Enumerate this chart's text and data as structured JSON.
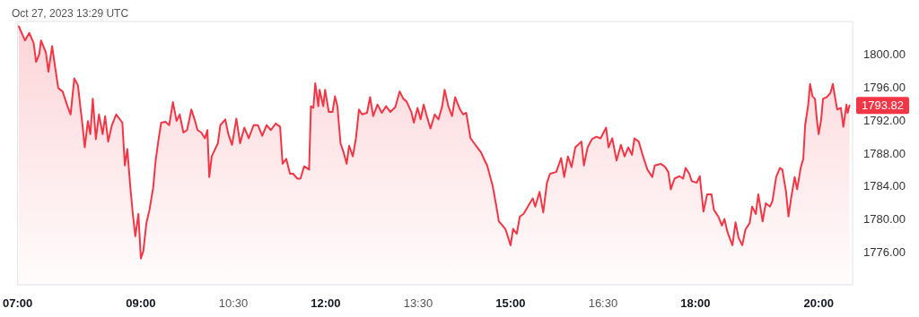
{
  "chart_data": {
    "type": "area",
    "title": "Oct 27, 2023 13:29 UTC",
    "x": [
      7.02,
      7.06,
      7.12,
      7.19,
      7.26,
      7.3,
      7.35,
      7.38,
      7.46,
      7.5,
      7.56,
      7.62,
      7.66,
      7.73,
      7.81,
      7.86,
      7.92,
      7.98,
      8.02,
      8.05,
      8.09,
      8.14,
      8.18,
      8.22,
      8.27,
      8.32,
      8.38,
      8.42,
      8.47,
      8.53,
      8.6,
      8.7,
      8.74,
      8.78,
      8.83,
      8.87,
      8.91,
      8.96,
      9.0,
      9.04,
      9.09,
      9.14,
      9.2,
      9.24,
      9.29,
      9.33,
      9.4,
      9.46,
      9.52,
      9.58,
      9.63,
      9.69,
      9.75,
      9.82,
      9.88,
      9.92,
      9.98,
      10.04,
      10.08,
      10.11,
      10.15,
      10.25,
      10.29,
      10.37,
      10.42,
      10.48,
      10.55,
      10.61,
      10.68,
      10.75,
      10.83,
      10.9,
      10.97,
      11.04,
      11.11,
      11.19,
      11.26,
      11.3,
      11.36,
      11.42,
      11.47,
      11.54,
      11.59,
      11.65,
      11.73,
      11.76,
      11.8,
      11.83,
      11.88,
      11.9,
      11.96,
      11.99,
      12.05,
      12.11,
      12.15,
      12.19,
      12.24,
      12.29,
      12.34,
      12.38,
      12.44,
      12.49,
      12.54,
      12.59,
      12.67,
      12.72,
      12.77,
      12.84,
      12.91,
      12.98,
      13.05,
      13.13,
      13.2,
      13.26,
      13.31,
      13.39,
      13.43,
      13.49,
      13.54,
      13.59,
      13.64,
      13.7,
      13.77,
      13.83,
      13.89,
      13.93,
      13.99,
      14.05,
      14.1,
      14.18,
      14.23,
      14.28,
      14.35,
      14.41,
      14.46,
      14.52,
      14.58,
      14.62,
      14.71,
      14.77,
      14.81,
      14.87,
      14.92,
      15.0,
      15.04,
      15.1,
      15.15,
      15.21,
      15.28,
      15.36,
      15.4,
      15.47,
      15.53,
      15.59,
      15.64,
      15.74,
      15.82,
      15.87,
      15.93,
      15.99,
      16.05,
      16.15,
      16.19,
      16.25,
      16.32,
      16.39,
      16.46,
      16.55,
      16.59,
      16.65,
      16.72,
      16.79,
      16.85,
      16.91,
      16.97,
      17.01,
      17.08,
      17.15,
      17.22,
      17.3,
      17.34,
      17.44,
      17.51,
      17.56,
      17.6,
      17.66,
      17.74,
      17.8,
      17.84,
      17.9,
      17.94,
      18.02,
      18.07,
      18.13,
      18.19,
      18.26,
      18.3,
      18.37,
      18.43,
      18.47,
      18.52,
      18.6,
      18.65,
      18.7,
      18.76,
      18.81,
      18.88,
      18.92,
      18.98,
      19.02,
      19.09,
      19.14,
      19.21,
      19.25,
      19.31,
      19.37,
      19.41,
      19.47,
      19.51,
      19.55,
      19.61,
      19.65,
      19.71,
      19.75,
      19.78,
      19.83,
      19.86,
      19.9,
      19.94,
      19.97,
      20.0,
      20.04,
      20.07,
      20.13,
      20.19,
      20.23,
      20.27,
      20.3,
      20.36,
      20.4,
      20.45,
      20.47,
      20.5
    ],
    "series": [
      {
        "color": "#f23645",
        "values": [
          1803.4,
          1802.7,
          1801.7,
          1802.6,
          1801.4,
          1799.1,
          1800.0,
          1801.7,
          1800.2,
          1797.9,
          1801.0,
          1797.9,
          1795.9,
          1795.5,
          1793.7,
          1792.7,
          1797.1,
          1796.2,
          1793.5,
          1791.6,
          1788.7,
          1791.9,
          1790.3,
          1794.6,
          1789.7,
          1792.7,
          1790.3,
          1792.5,
          1789.4,
          1791.4,
          1792.7,
          1791.7,
          1786.5,
          1788.5,
          1783.8,
          1780.6,
          1777.9,
          1780.6,
          1775.2,
          1776.1,
          1779.5,
          1781.1,
          1783.8,
          1787.1,
          1789.8,
          1791.7,
          1791.8,
          1791.4,
          1794.2,
          1791.9,
          1792.7,
          1790.5,
          1790.8,
          1793.3,
          1791.9,
          1790.8,
          1790.5,
          1789.8,
          1790.8,
          1785.1,
          1787.6,
          1789.2,
          1791.4,
          1792.1,
          1790.3,
          1789.0,
          1792.2,
          1789.2,
          1791.1,
          1789.8,
          1791.4,
          1791.4,
          1790.1,
          1791.4,
          1790.8,
          1791.6,
          1791.2,
          1786.7,
          1787.3,
          1785.5,
          1785.5,
          1784.9,
          1784.9,
          1786.4,
          1786.0,
          1793.7,
          1793.5,
          1796.5,
          1793.7,
          1795.7,
          1793.7,
          1795.7,
          1793.0,
          1793.0,
          1794.9,
          1793.7,
          1789.2,
          1788.1,
          1786.7,
          1788.9,
          1787.6,
          1789.8,
          1793.3,
          1792.7,
          1792.9,
          1794.8,
          1792.5,
          1793.9,
          1792.9,
          1793.7,
          1793.0,
          1793.6,
          1795.5,
          1794.6,
          1794.3,
          1793.0,
          1791.7,
          1793.5,
          1792.1,
          1793.9,
          1792.5,
          1791.0,
          1792.7,
          1792.1,
          1793.7,
          1795.7,
          1793.7,
          1792.5,
          1794.8,
          1793.3,
          1792.7,
          1792.9,
          1789.8,
          1789.2,
          1788.7,
          1788.1,
          1787.1,
          1786.5,
          1784.0,
          1781.5,
          1779.7,
          1779.2,
          1778.7,
          1776.8,
          1778.8,
          1778.2,
          1780.3,
          1780.6,
          1781.5,
          1782.5,
          1781.5,
          1783.3,
          1780.8,
          1784.4,
          1785.5,
          1785.7,
          1787.4,
          1785.1,
          1787.6,
          1786.3,
          1788.7,
          1789.4,
          1786.5,
          1788.7,
          1789.7,
          1790.0,
          1789.8,
          1791.1,
          1788.7,
          1789.8,
          1787.1,
          1789.0,
          1787.6,
          1788.7,
          1787.8,
          1789.8,
          1789.4,
          1787.6,
          1786.0,
          1785.1,
          1786.5,
          1786.7,
          1786.3,
          1785.7,
          1783.6,
          1784.9,
          1785.2,
          1784.9,
          1786.2,
          1785.5,
          1784.6,
          1784.4,
          1785.2,
          1780.9,
          1783.0,
          1783.0,
          1781.1,
          1780.3,
          1779.2,
          1780.0,
          1778.4,
          1776.8,
          1779.6,
          1777.7,
          1776.8,
          1778.7,
          1779.5,
          1781.5,
          1780.6,
          1783.0,
          1779.7,
          1781.9,
          1781.5,
          1782.2,
          1785.1,
          1786.2,
          1786.0,
          1783.3,
          1780.3,
          1782.4,
          1785.1,
          1783.6,
          1786.3,
          1787.3,
          1791.4,
          1793.9,
          1796.4,
          1794.9,
          1794.6,
          1792.1,
          1790.3,
          1792.1,
          1794.6,
          1794.8,
          1795.3,
          1796.4,
          1794.6,
          1793.3,
          1793.5,
          1791.2,
          1793.9,
          1792.9,
          1793.8
        ]
      }
    ],
    "xlim": [
      7,
      20.55
    ],
    "xticks": [
      {
        "value": 7,
        "label": "07:00"
      },
      {
        "value": 9,
        "label": "09:00"
      },
      {
        "value": 10.5,
        "label": "10:30"
      },
      {
        "value": 12,
        "label": "12:00"
      },
      {
        "value": 13.5,
        "label": "13:30"
      },
      {
        "value": 15,
        "label": "15:00"
      },
      {
        "value": 16.5,
        "label": "16:30"
      },
      {
        "value": 18,
        "label": "18:00"
      },
      {
        "value": 20,
        "label": "20:00"
      }
    ],
    "ylim": [
      1772,
      1804
    ],
    "yticks": [
      {
        "value": 1776,
        "label": "1776.00"
      },
      {
        "value": 1780,
        "label": "1780.00"
      },
      {
        "value": 1784,
        "label": "1784.00"
      },
      {
        "value": 1788,
        "label": "1788.00"
      },
      {
        "value": 1792,
        "label": "1792.00"
      },
      {
        "value": 1796,
        "label": "1796.00"
      },
      {
        "value": 1800,
        "label": "1800.00"
      }
    ],
    "annotations": [
      "1793.82"
    ],
    "grid": false,
    "marker": "none",
    "line_style": "solid"
  }
}
